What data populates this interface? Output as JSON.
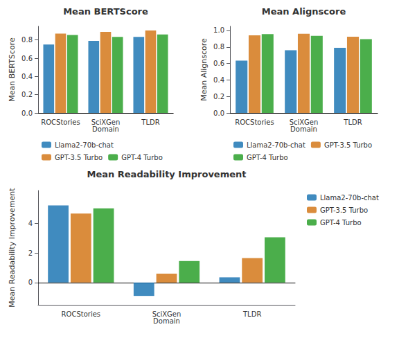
{
  "chart_data": [
    {
      "type": "bar",
      "title": "Mean BERTScore",
      "ylabel": "Mean BERTScore",
      "categories": [
        "ROCStories",
        "SciXGen\nDomain",
        "TLDR"
      ],
      "series": [
        {
          "name": "Llama2-70b-chat",
          "color": "#1f77b4",
          "values": [
            0.75,
            0.79,
            0.835
          ]
        },
        {
          "name": "GPT-3.5 Turbo",
          "color": "#d4781a",
          "values": [
            0.87,
            0.89,
            0.905
          ]
        },
        {
          "name": "GPT-4 Turbo",
          "color": "#2ca02c",
          "values": [
            0.855,
            0.835,
            0.86
          ]
        }
      ],
      "ylim": [
        0.0,
        0.95
      ],
      "yticks": [
        {
          "value": 0,
          "label": "0.0"
        },
        0.2,
        0.4,
        0.6,
        0.8
      ],
      "grid": false,
      "legend": "lower center"
    },
    {
      "type": "bar",
      "title": "Mean Alignscore",
      "ylabel": "Mean Alignscore",
      "categories": [
        "ROCStories",
        "SciXGen\nDomain",
        "TLDR"
      ],
      "series": [
        {
          "name": "Llama2-70b-chat",
          "color": "#1f77b4",
          "values": [
            0.635,
            0.76,
            0.79
          ]
        },
        {
          "name": "GPT-3.5 Turbo",
          "color": "#d4781a",
          "values": [
            0.94,
            0.96,
            0.925
          ]
        },
        {
          "name": "GPT-4 Turbo",
          "color": "#2ca02c",
          "values": [
            0.955,
            0.935,
            0.895
          ]
        }
      ],
      "ylim": [
        0.0,
        1.05
      ],
      "yticks": [
        {
          "value": 0,
          "label": "0.0"
        },
        0.2,
        0.4,
        0.6,
        0.8,
        {
          "value": 1,
          "label": "1.0"
        }
      ],
      "grid": false,
      "legend": "lower center"
    },
    {
      "type": "bar",
      "title": "Mean Readability Improvement",
      "ylabel": "Mean Readability Improvement",
      "categories": [
        "ROCStories",
        "SciXGen\nDomain",
        "TLDR"
      ],
      "series": [
        {
          "name": "Llama2-70b-chat",
          "color": "#1f77b4",
          "values": [
            5.2,
            -0.9,
            0.35
          ]
        },
        {
          "name": "GPT-3.5 Turbo",
          "color": "#d4781a",
          "values": [
            4.65,
            0.6,
            1.65
          ]
        },
        {
          "name": "GPT-4 Turbo",
          "color": "#2ca02c",
          "values": [
            5.0,
            1.45,
            3.05
          ]
        }
      ],
      "ylim": [
        -1.5,
        6.2
      ],
      "yticks": [
        0,
        2,
        4
      ],
      "grid": false,
      "legend": "upper right"
    }
  ]
}
